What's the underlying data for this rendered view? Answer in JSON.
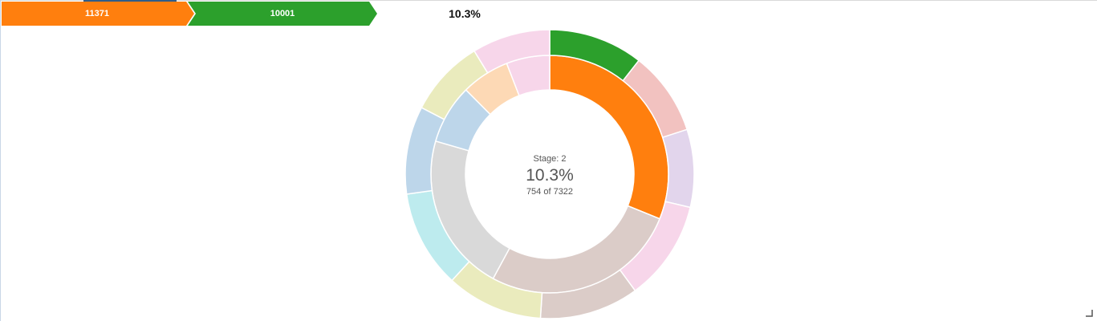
{
  "breadcrumb": {
    "items": [
      {
        "label": "11371",
        "color": "#ff7f0e"
      },
      {
        "label": "10001",
        "color": "#2ca02c"
      }
    ],
    "percentage": "10.3%"
  },
  "center": {
    "stage": "Stage: 2",
    "percentage": "10.3%",
    "count": "754 of 7322"
  },
  "chart_data": {
    "type": "sunburst",
    "total": 7322,
    "highlighted": {
      "path": [
        "11371",
        "10001"
      ],
      "count": 754,
      "percentage": "10.3%"
    },
    "inner_ring": [
      {
        "color": "#ff7f0e",
        "value": 2280
      },
      {
        "color": "#dbccc8",
        "value": 1960
      },
      {
        "color": "#d9d9d9",
        "value": 1580
      },
      {
        "color": "#bdd6ea",
        "value": 590
      },
      {
        "color": "#fdd9b5",
        "value": 480
      },
      {
        "color": "#f7d6ea",
        "value": 432
      }
    ],
    "outer_ring": [
      {
        "color": "#2ca02c",
        "value": 754
      },
      {
        "color": "#f2c2c0",
        "value": 670
      },
      {
        "color": "#e2d5ec",
        "value": 620
      },
      {
        "color": "#f7d6ea",
        "value": 800
      },
      {
        "color": "#dbccc8",
        "value": 790
      },
      {
        "color": "#eaebbd",
        "value": 770
      },
      {
        "color": "#bdebee",
        "value": 780
      },
      {
        "color": "#bdd6ea",
        "value": 700
      },
      {
        "color": "#eaebbd",
        "value": 615
      },
      {
        "color": "#f7d6ea",
        "value": 623
      }
    ]
  }
}
